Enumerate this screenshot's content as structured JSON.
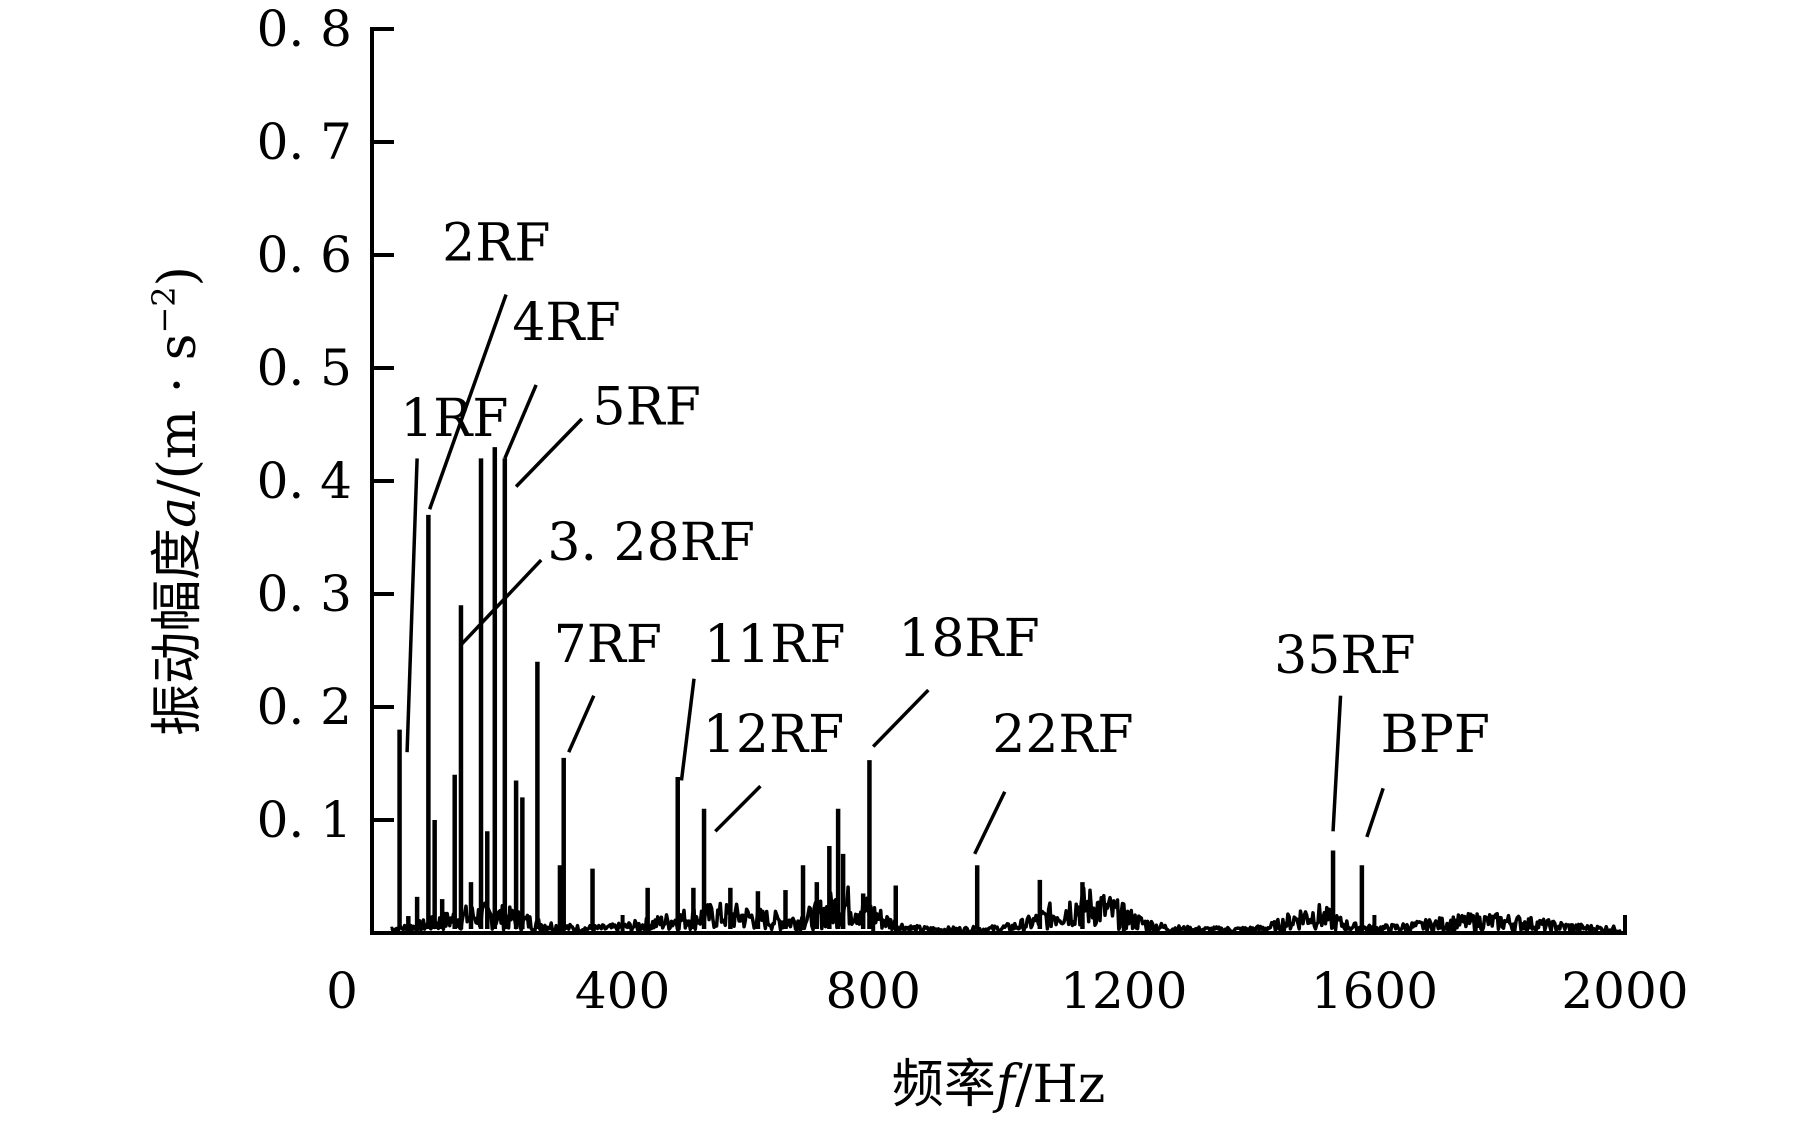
{
  "chart_data": {
    "type": "bar",
    "xlabel_parts": {
      "prefix": "频率",
      "var": "f",
      "unit": "/Hz"
    },
    "ylabel_parts": {
      "prefix": "振动幅度",
      "var": "a",
      "unit_open": "/(m · s",
      "sup": "−2",
      "unit_close": ")"
    },
    "xlim": [
      0,
      2000
    ],
    "ylim": [
      0,
      0.8
    ],
    "x_ticks": [
      {
        "v": 0,
        "label": "0"
      },
      {
        "v": 400,
        "label": "400"
      },
      {
        "v": 800,
        "label": "800"
      },
      {
        "v": 1200,
        "label": "1200"
      },
      {
        "v": 1600,
        "label": "1600"
      },
      {
        "v": 2000,
        "label": "2000"
      }
    ],
    "y_ticks": [
      {
        "v": 0.1,
        "label": "0. 1"
      },
      {
        "v": 0.2,
        "label": "0. 2"
      },
      {
        "v": 0.3,
        "label": "0. 3"
      },
      {
        "v": 0.4,
        "label": "0. 4"
      },
      {
        "v": 0.5,
        "label": "0. 5"
      },
      {
        "v": 0.6,
        "label": "0. 6"
      },
      {
        "v": 0.7,
        "label": "0. 7"
      },
      {
        "v": 0.8,
        "label": "0. 8"
      }
    ],
    "grid": false,
    "line_color": "#000000",
    "peaks": [
      [
        44,
        0.18
      ],
      [
        58,
        0.015
      ],
      [
        72,
        0.032
      ],
      [
        90,
        0.37
      ],
      [
        100,
        0.1
      ],
      [
        112,
        0.03
      ],
      [
        132,
        0.14
      ],
      [
        142,
        0.29
      ],
      [
        158,
        0.045
      ],
      [
        174,
        0.42
      ],
      [
        184,
        0.09
      ],
      [
        196,
        0.43
      ],
      [
        212,
        0.42
      ],
      [
        230,
        0.135
      ],
      [
        240,
        0.12
      ],
      [
        264,
        0.24
      ],
      [
        300,
        0.06
      ],
      [
        306,
        0.155
      ],
      [
        352,
        0.057
      ],
      [
        440,
        0.04
      ],
      [
        488,
        0.138
      ],
      [
        513,
        0.04
      ],
      [
        530,
        0.11
      ],
      [
        572,
        0.04
      ],
      [
        616,
        0.037
      ],
      [
        660,
        0.038
      ],
      [
        688,
        0.06
      ],
      [
        710,
        0.045
      ],
      [
        730,
        0.077
      ],
      [
        744,
        0.11
      ],
      [
        752,
        0.07
      ],
      [
        784,
        0.035
      ],
      [
        794,
        0.153
      ],
      [
        836,
        0.042
      ],
      [
        966,
        0.06
      ],
      [
        1066,
        0.047
      ],
      [
        1134,
        0.045
      ],
      [
        1534,
        0.073
      ],
      [
        1580,
        0.06
      ]
    ],
    "annotations": [
      {
        "label": "1RF",
        "peak_x": 44,
        "line": [
          [
            56,
            0.16
          ],
          [
            72,
            0.42
          ]
        ],
        "text_pos": [
          45,
          0.44
        ]
      },
      {
        "label": "2RF",
        "peak_x": 90,
        "line": [
          [
            92,
            0.375
          ],
          [
            214,
            0.565
          ]
        ],
        "text_pos": [
          112,
          0.595
        ]
      },
      {
        "label": "4RF",
        "peak_x": 212,
        "line": [
          [
            212,
            0.42
          ],
          [
            262,
            0.485
          ]
        ],
        "text_pos": [
          224,
          0.525
        ]
      },
      {
        "label": "5RF",
        "peak_x": 230,
        "line": [
          [
            230,
            0.395
          ],
          [
            335,
            0.455
          ]
        ],
        "text_pos": [
          352,
          0.45
        ]
      },
      {
        "label": "3. 28RF",
        "peak_x": 142,
        "line": [
          [
            142,
            0.255
          ],
          [
            270,
            0.33
          ]
        ],
        "text_pos": [
          280,
          0.33
        ]
      },
      {
        "label": "7RF",
        "peak_x": 306,
        "line": [
          [
            314,
            0.16
          ],
          [
            354,
            0.21
          ]
        ],
        "text_pos": [
          290,
          0.24
        ]
      },
      {
        "label": "11RF",
        "peak_x": 488,
        "line": [
          [
            494,
            0.135
          ],
          [
            514,
            0.225
          ]
        ],
        "text_pos": [
          530,
          0.24
        ]
      },
      {
        "label": "12RF",
        "peak_x": 530,
        "line": [
          [
            548,
            0.09
          ],
          [
            620,
            0.13
          ]
        ],
        "text_pos": [
          528,
          0.16
        ]
      },
      {
        "label": "18RF",
        "peak_x": 794,
        "line": [
          [
            800,
            0.165
          ],
          [
            888,
            0.215
          ]
        ],
        "text_pos": [
          840,
          0.245
        ]
      },
      {
        "label": "22RF",
        "peak_x": 966,
        "line": [
          [
            962,
            0.07
          ],
          [
            1010,
            0.125
          ]
        ],
        "text_pos": [
          990,
          0.16
        ]
      },
      {
        "label": "35RF",
        "peak_x": 1534,
        "line": [
          [
            1534,
            0.09
          ],
          [
            1546,
            0.21
          ]
        ],
        "text_pos": [
          1440,
          0.23
        ]
      },
      {
        "label": "BPF",
        "peak_x": 1580,
        "line": [
          [
            1588,
            0.085
          ],
          [
            1614,
            0.128
          ]
        ],
        "text_pos": [
          1610,
          0.16
        ]
      }
    ]
  }
}
